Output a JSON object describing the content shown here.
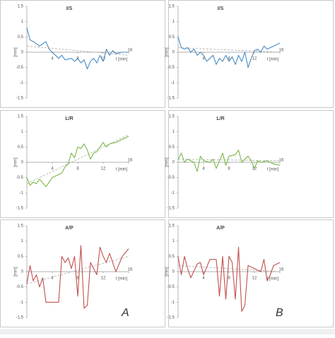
{
  "chart_data": [
    {
      "type": "line",
      "title": "I/S",
      "x_label": "t [min]",
      "y_label": "[mm]",
      "x": [
        0,
        0.5,
        1,
        2,
        3,
        3.5,
        4,
        4.5,
        5,
        5.5,
        6,
        7,
        7.5,
        8,
        8.5,
        9,
        9.5,
        10,
        10.5,
        11,
        11.5,
        12,
        12.5,
        13,
        13.5,
        14,
        15,
        16
      ],
      "series": [
        {
          "color": "#4a8cc4",
          "values": [
            0.8,
            0.4,
            0.35,
            0.2,
            0.35,
            0.1,
            0,
            -0.1,
            -0.2,
            -0.1,
            -0.25,
            -0.2,
            -0.3,
            -0.2,
            -0.35,
            -0.25,
            -0.55,
            -0.3,
            -0.2,
            -0.35,
            -0.1,
            -0.3,
            0.1,
            -0.1,
            0.05,
            -0.05,
            0,
            0
          ]
        }
      ],
      "trend": {
        "x": [
          0,
          16
        ],
        "values": [
          0.2,
          -0.1
        ]
      },
      "xlim": [
        0,
        16
      ],
      "xticks": [
        4,
        8,
        12,
        16
      ],
      "ylim": [
        -1.5,
        1.5
      ],
      "yticks": [
        -1.5,
        -1,
        -0.5,
        0,
        0.5,
        1,
        1.5
      ]
    },
    {
      "type": "line",
      "title": "I/S",
      "x_label": "t [min]",
      "y_label": "[mm]",
      "x": [
        0,
        0.5,
        1,
        1.5,
        2,
        2.5,
        3,
        3.5,
        4,
        4.5,
        5,
        5.5,
        6,
        6.5,
        7,
        7.5,
        8,
        8.5,
        9,
        9.5,
        10,
        10.5,
        11,
        11.5,
        12,
        12.5,
        13,
        13.5,
        14,
        15,
        16
      ],
      "series": [
        {
          "color": "#4a8cc4",
          "values": [
            0.5,
            0.15,
            0.1,
            0.15,
            0,
            0.1,
            -0.1,
            0,
            -0.1,
            -0.3,
            -0.2,
            -0.1,
            -0.4,
            -0.2,
            -0.3,
            -0.1,
            -0.3,
            -0.15,
            -0.4,
            -0.1,
            -0.3,
            0,
            -0.5,
            -0.2,
            0.05,
            0.1,
            0,
            0.2,
            0.1,
            0.2,
            0.3
          ]
        }
      ],
      "trend": {
        "x": [
          0,
          16
        ],
        "values": [
          0.15,
          0
        ]
      },
      "xlim": [
        0,
        16
      ],
      "xticks": [
        4,
        8,
        12,
        16
      ],
      "ylim": [
        -1.5,
        1.5
      ],
      "yticks": [
        -1.5,
        -1,
        -0.5,
        0,
        0.5,
        1,
        1.5
      ]
    },
    {
      "type": "line",
      "title": "L/R",
      "x_label": "t [min]",
      "y_label": "[mm]",
      "x": [
        0,
        0.5,
        1,
        1.5,
        2,
        3,
        4,
        5,
        5.5,
        6,
        6.5,
        7,
        7.5,
        8,
        8.5,
        9,
        9.5,
        10,
        10.5,
        11,
        12,
        12.5,
        13,
        14,
        15,
        16
      ],
      "series": [
        {
          "color": "#7ab648",
          "values": [
            -0.5,
            -0.75,
            -0.65,
            -0.7,
            -0.55,
            -0.8,
            -0.5,
            -0.4,
            -0.35,
            -0.15,
            -0.05,
            0.3,
            0.15,
            0.5,
            0.45,
            0.6,
            0.4,
            0.1,
            0.3,
            0.35,
            0.65,
            0.5,
            0.6,
            0.65,
            0.75,
            0.85
          ]
        }
      ],
      "trend": {
        "x": [
          0,
          16
        ],
        "values": [
          -0.7,
          0.9
        ]
      },
      "xlim": [
        0,
        16
      ],
      "xticks": [
        4,
        8,
        12,
        16
      ],
      "ylim": [
        -1.5,
        1.5
      ],
      "yticks": [
        -1.5,
        -1,
        -0.5,
        0,
        0.5,
        1,
        1.5
      ]
    },
    {
      "type": "line",
      "title": "L/R",
      "x_label": "t [min]",
      "y_label": "[mm]",
      "x": [
        0,
        0.5,
        1,
        1.5,
        2,
        2.5,
        3,
        3.5,
        4,
        5,
        5.5,
        6,
        7,
        7.5,
        8,
        9,
        9.5,
        10,
        11,
        11.5,
        12,
        12.5,
        13,
        14,
        15,
        16
      ],
      "series": [
        {
          "color": "#7ab648",
          "values": [
            0.1,
            0.3,
            0,
            0.1,
            0.05,
            0,
            -0.3,
            0.2,
            0.05,
            0,
            0.1,
            -0.2,
            0.3,
            -0.1,
            0.2,
            0.25,
            0.4,
            0,
            0.2,
            0.05,
            -0.2,
            0.05,
            0,
            0.05,
            -0.05,
            -0.1
          ]
        }
      ],
      "trend": {
        "x": [
          0,
          16
        ],
        "values": [
          0.1,
          0.05
        ]
      },
      "xlim": [
        0,
        16
      ],
      "xticks": [
        4,
        8,
        12,
        16
      ],
      "ylim": [
        -1.5,
        1.5
      ],
      "yticks": [
        -1.5,
        -1,
        -0.5,
        0,
        0.5,
        1,
        1.5
      ]
    },
    {
      "type": "line",
      "title": "A/P",
      "x_label": "t [min]",
      "y_label": "[mm]",
      "x": [
        0,
        0.5,
        1,
        1.5,
        2,
        2.5,
        3,
        4,
        5,
        5.5,
        6,
        6.5,
        7,
        7.5,
        8,
        8.5,
        9,
        9.5,
        10,
        10.5,
        11,
        11.5,
        12,
        12.5,
        13,
        14,
        14.5,
        15,
        16
      ],
      "series": [
        {
          "color": "#c0504d",
          "values": [
            -0.4,
            0.2,
            -0.3,
            -0.1,
            -0.5,
            -0.2,
            -1,
            -1,
            -1,
            0.5,
            0.3,
            0.45,
            0.1,
            0.5,
            -0.8,
            0.85,
            -1.2,
            -1.1,
            0.3,
            0.1,
            -0.1,
            0.8,
            0.5,
            0.3,
            0.6,
            0,
            0.25,
            0.5,
            0.75
          ]
        }
      ],
      "trend": {
        "x": [
          0,
          16
        ],
        "values": [
          -0.4,
          0.5
        ]
      },
      "xlim": [
        0,
        16
      ],
      "xticks": [
        4,
        8,
        12,
        16
      ],
      "ylim": [
        -1.5,
        1.5
      ],
      "yticks": [
        -1.5,
        -1,
        -0.5,
        0,
        0.5,
        1,
        1.5
      ]
    },
    {
      "type": "line",
      "title": "A/P",
      "x_label": "t [min]",
      "y_label": "[mm]",
      "x": [
        0,
        0.5,
        1,
        1.5,
        2,
        3,
        3.5,
        4,
        5,
        6,
        6.5,
        7,
        7.5,
        8,
        8.5,
        9,
        9.5,
        10,
        10.5,
        11,
        12,
        13,
        13.5,
        14,
        14.5,
        15,
        16
      ],
      "series": [
        {
          "color": "#c0504d",
          "values": [
            0.5,
            -0.1,
            0.5,
            0.1,
            -0.2,
            0.25,
            0.3,
            -0.1,
            0.4,
            0.4,
            -0.8,
            0.5,
            -0.9,
            0.5,
            0.3,
            -0.9,
            0.8,
            -1.3,
            -1.1,
            0.2,
            0.1,
            0,
            0.4,
            -0.3,
            -0.1,
            0.2,
            0.3
          ]
        }
      ],
      "trend": {
        "x": [
          0,
          16
        ],
        "values": [
          0.2,
          0
        ]
      },
      "xlim": [
        0,
        16
      ],
      "xticks": [
        4,
        8,
        12,
        16
      ],
      "ylim": [
        -1.5,
        1.5
      ],
      "yticks": [
        -1.5,
        -1,
        -0.5,
        0,
        0.5,
        1,
        1.5
      ]
    }
  ],
  "panel_labels": [
    "A",
    "B"
  ]
}
